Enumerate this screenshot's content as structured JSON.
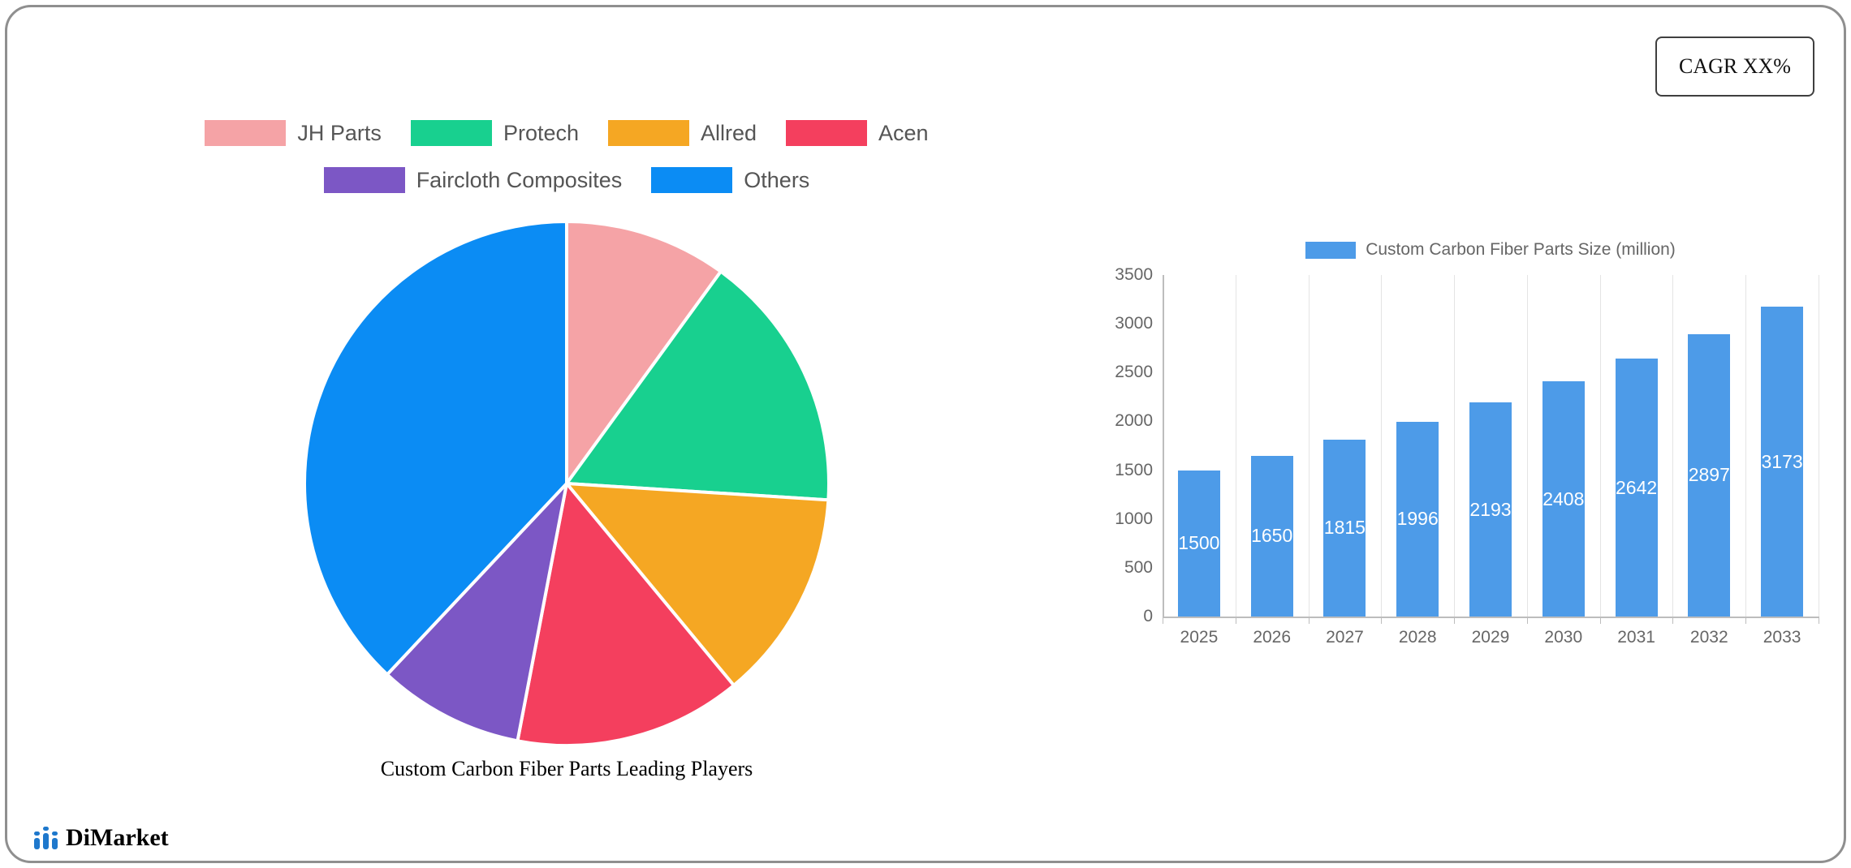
{
  "cagr_badge": "CAGR XX%",
  "logo": {
    "text": "DiMarket"
  },
  "colors": {
    "bar_blue": "#4D9BE8",
    "pie_blue": "#0B8CF4",
    "axis_text": "#666666"
  },
  "chart_data": [
    {
      "type": "pie",
      "title": "Custom Carbon Fiber Parts Leading Players",
      "labels": [
        "JH Parts",
        "Protech",
        "Allred",
        "Acen",
        "Faircloth Composites",
        "Others"
      ],
      "values": [
        10,
        16,
        13,
        14,
        9,
        38
      ],
      "colors": [
        "#F5A3A6",
        "#18D08F",
        "#F5A723",
        "#F43F5E",
        "#7C57C5",
        "#0B8CF4"
      ],
      "legend_position": "top",
      "start_angle_deg": 0,
      "direction": "clockwise"
    },
    {
      "type": "bar",
      "legend": "Custom Carbon Fiber Parts Size (million)",
      "categories": [
        "2025",
        "2026",
        "2027",
        "2028",
        "2029",
        "2030",
        "2031",
        "2032",
        "2033"
      ],
      "values": [
        1500,
        1650,
        1815,
        1996,
        2193,
        2408,
        2642,
        2897,
        3173
      ],
      "ylim": [
        0,
        3500
      ],
      "ytick_step": 500,
      "bar_color": "#4D9BE8",
      "value_label_color": "#ffffff",
      "grid": "vertical",
      "legend_position": "top"
    }
  ]
}
